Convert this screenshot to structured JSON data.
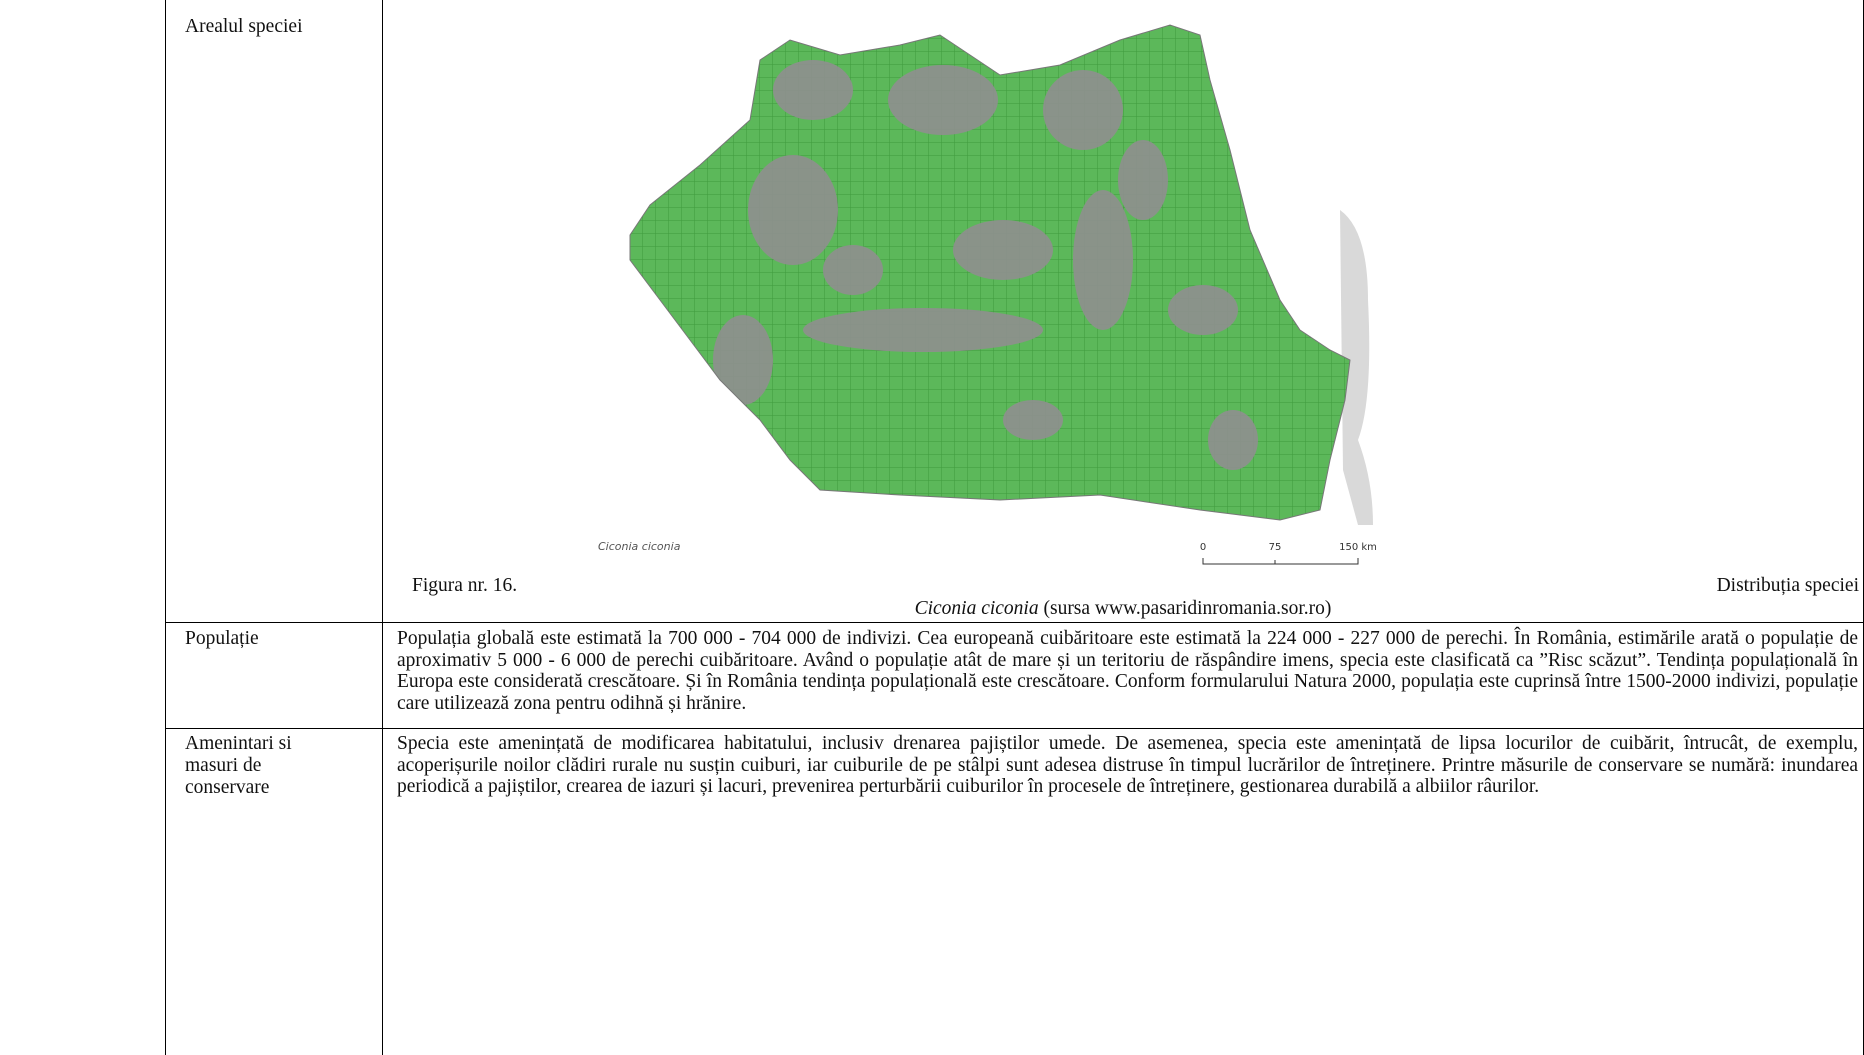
{
  "table": {
    "rows": [
      {
        "label": "Arealul speciei",
        "figure": {
          "map_label": "Ciconia ciconia",
          "scale": [
            "0",
            "75",
            "150 km"
          ],
          "caption_number": "Figura nr.  16.",
          "caption_text": "Distribuția speciei",
          "caption_species": "Ciconia ciconia",
          "caption_source": "(sursa www.pasaridinromania.sor.ro)"
        }
      },
      {
        "label": "Populație",
        "text": "Populația globală este estimată la 700 000 - 704 000 de indivizi. Cea europeană cuibăritoare este estimată la 224 000 - 227 000 de perechi. În România, estimările arată o populație de aproximativ 5 000 - 6 000 de perechi cuibăritoare. Având o populație atât de mare și un teritoriu de răspândire imens, specia este clasificată ca ”Risc scăzut”. Tendința populațională în Europa este considerată crescătoare. Și în România tendința populațională este crescătoare. Conform formularului Natura 2000, populația este cuprinsă între 1500-2000 indivizi, populație care utilizează zona pentru odihnă și hrănire."
      },
      {
        "label": "Amenintari si masuri de conservare",
        "text": "Specia este amenințată de modificarea habitatului, inclusiv drenarea pajiștilor umede. De asemenea, specia este amenințată de lipsa locurilor de cuibărit, întrucât, de exemplu, acoperișurile noilor clădiri rurale nu susțin cuiburi, iar cuiburile de pe stâlpi sunt adesea distruse în timpul lucrărilor de întreținere. Printre măsurile de conservare se numără: inundarea periodică a pajiștilor, crearea de iazuri și lacuri, prevenirea perturbării cuiburilor în procesele de întreținere, gestionarea durabilă a albiilor râurilor."
      }
    ]
  }
}
